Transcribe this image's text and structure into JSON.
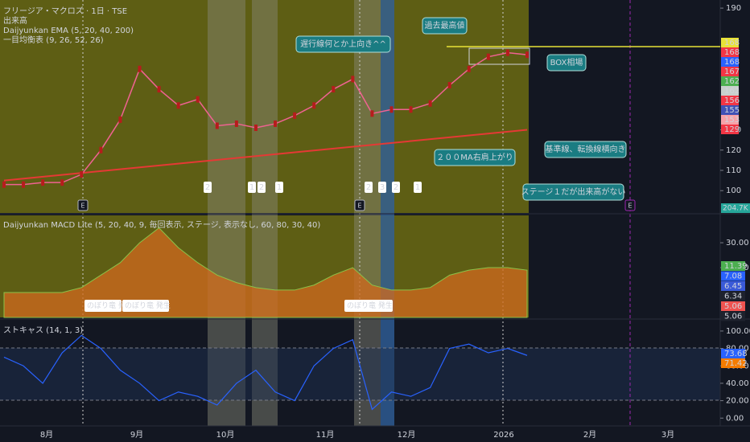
{
  "main_panel": {
    "legend": [
      "フリージア・マクロズ · 1日 · TSE",
      "出来高",
      "Daijyunkan EMA (5, 20, 40, 200)",
      "一目均衡表 (9, 26, 52, 26)"
    ],
    "ylim": [
      89,
      194
    ],
    "yticks": [
      190,
      130,
      120,
      110,
      100
    ],
    "closes": [
      103,
      103,
      104,
      104,
      108,
      120,
      135,
      160,
      150,
      142,
      145,
      132,
      133,
      131,
      133,
      137,
      142,
      150,
      155,
      138,
      140,
      140,
      143,
      152,
      160,
      166,
      168,
      167
    ],
    "ma200": [
      105,
      130
    ],
    "price_tags": [
      {
        "value": 168,
        "color": "#e8e337"
      },
      {
        "value": 168,
        "color": "#f23645"
      },
      {
        "value": 168,
        "color": "#2962ff"
      },
      {
        "value": 167,
        "color": "#f23645"
      },
      {
        "value": 162,
        "color": "#4caf50"
      },
      {
        "value": 162,
        "color": "#c8d0cc"
      },
      {
        "value": 156,
        "color": "#f23645"
      },
      {
        "value": 155,
        "color": "#3f51b5"
      },
      {
        "value": 153,
        "color": "#f7a1a8"
      },
      {
        "value": 129,
        "color": "#f23645"
      }
    ],
    "volume_tag": "204.7K",
    "stage_markers": [
      2,
      1,
      2,
      1,
      2,
      3,
      2,
      1
    ],
    "event_markers": [
      "E",
      "E",
      "E"
    ],
    "annotations": [
      "遅行線何とか上向き^^",
      "過去最高値",
      "BOX相場",
      "基準線、転換線横向き",
      "２００MA右肩上がり",
      "ステージ１だが出来高がない"
    ]
  },
  "macd_panel": {
    "legend": "Daijyunkan MACD Lite (5, 20, 40, 9, 毎回表示, ステージ, 表示なし, 60, 80, 30, 40)",
    "ylim": [
      0,
      41
    ],
    "yticks": [
      {
        "value": 30,
        "label": "30.00"
      },
      {
        "value": 20,
        "label": "20.00"
      }
    ],
    "values": [
      10,
      10,
      10,
      10,
      12,
      17,
      22,
      30,
      36,
      28,
      22,
      17,
      14,
      12,
      11,
      11,
      13,
      17,
      20,
      13,
      11,
      11,
      12,
      17,
      19,
      20,
      20,
      19
    ],
    "value_tags": [
      {
        "value": 11.39,
        "label": "11.39",
        "color": "#4caf50"
      },
      {
        "value": 7.08,
        "label": "7.08",
        "color": "#2962ff"
      },
      {
        "value": 6.45,
        "label": "6.45",
        "color": "#3a5ad8"
      },
      {
        "value": 6.34,
        "label": "6.34",
        "color": "#1e222d"
      },
      {
        "value": 5.06,
        "label": "5.06",
        "color": "#ef5350"
      },
      {
        "value": 5.06,
        "label": "5.06",
        "color": "#1e222d"
      }
    ],
    "labels": [
      "のぼり竜 発",
      "のぼり竜 発生",
      "のぼり竜 発生"
    ]
  },
  "stoch_panel": {
    "legend": "ストキャス (14, 1, 3)",
    "ylim": [
      -9,
      111
    ],
    "yticks": [
      {
        "value": 100,
        "label": "100.00"
      },
      {
        "value": 80,
        "label": "80.00"
      },
      {
        "value": 60,
        "label": "60.00"
      },
      {
        "value": 40,
        "label": "40.00"
      },
      {
        "value": 20,
        "label": "20.00"
      },
      {
        "value": 0,
        "label": "0.00"
      }
    ],
    "values": [
      70,
      60,
      40,
      75,
      95,
      80,
      55,
      40,
      20,
      30,
      25,
      15,
      40,
      55,
      30,
      20,
      60,
      80,
      90,
      10,
      30,
      25,
      35,
      80,
      85,
      75,
      80,
      72
    ],
    "value_tags": [
      {
        "value": 73.68,
        "label": "73.68",
        "color": "#2962ff"
      },
      {
        "value": 71.42,
        "label": "71.42",
        "color": "#f57c00"
      }
    ]
  },
  "x_axis": {
    "labels": [
      "8月",
      "9月",
      "10月",
      "11月",
      "12月",
      "2026",
      "2月",
      "3月"
    ]
  }
}
